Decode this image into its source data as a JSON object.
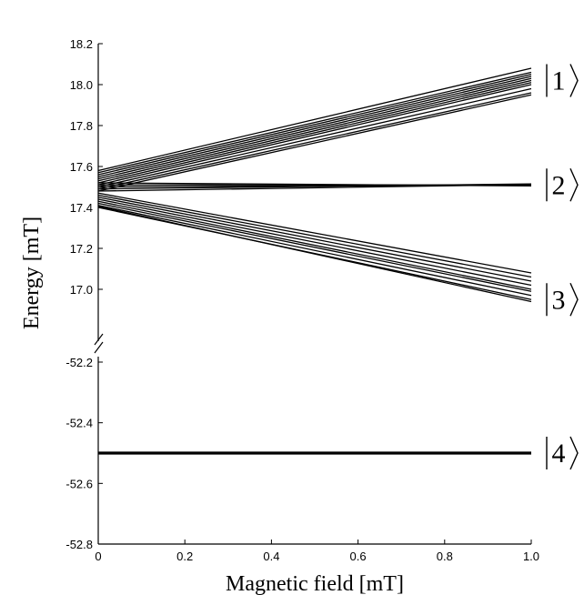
{
  "chart_data": {
    "type": "line",
    "xlabel": "Magnetic field [mT]",
    "ylabel": "Energy [mT]",
    "xlim": [
      0,
      1.0
    ],
    "x_ticks": [
      "0",
      "0.2",
      "0.4",
      "0.6",
      "0.8",
      "1.0"
    ],
    "broken_y_axis": true,
    "upper_panel": {
      "ylim": [
        16.87,
        18.2
      ],
      "y_ticks": [
        "18.2",
        "18.0",
        "17.8",
        "17.6",
        "17.4",
        "17.2",
        "17.0"
      ]
    },
    "lower_panel": {
      "ylim": [
        -52.8,
        -52.1
      ],
      "y_ticks": [
        "-52.2",
        "-52.4",
        "-52.6",
        "-52.8"
      ]
    },
    "state_labels": [
      {
        "ket": "1",
        "level": 18.02,
        "panel": "upper"
      },
      {
        "ket": "2",
        "level": 17.51,
        "panel": "upper"
      },
      {
        "ket": "3",
        "level": 16.95,
        "panel": "upper"
      },
      {
        "ket": "4",
        "level": -52.5,
        "panel": "lower"
      }
    ],
    "series_groups": [
      {
        "state": "1",
        "x": [
          0,
          1.0
        ],
        "lines": [
          [
            17.58,
            18.08
          ],
          [
            17.57,
            18.06
          ],
          [
            17.56,
            18.05
          ],
          [
            17.55,
            18.04
          ],
          [
            17.54,
            18.03
          ],
          [
            17.53,
            18.02
          ],
          [
            17.52,
            18.01
          ],
          [
            17.51,
            18.0
          ],
          [
            17.5,
            17.98
          ],
          [
            17.49,
            17.96
          ],
          [
            17.48,
            17.95
          ]
        ]
      },
      {
        "state": "2",
        "x": [
          0,
          1.0
        ],
        "lines": [
          [
            17.52,
            17.505
          ],
          [
            17.51,
            17.51
          ],
          [
            17.5,
            17.51
          ],
          [
            17.49,
            17.515
          ],
          [
            17.48,
            17.512
          ]
        ]
      },
      {
        "state": "3",
        "x": [
          0,
          1.0
        ],
        "lines": [
          [
            17.47,
            17.08
          ],
          [
            17.46,
            17.06
          ],
          [
            17.45,
            17.04
          ],
          [
            17.44,
            17.02
          ],
          [
            17.43,
            17.0
          ],
          [
            17.42,
            16.99
          ],
          [
            17.41,
            16.97
          ],
          [
            17.4,
            16.95
          ],
          [
            17.405,
            16.94
          ]
        ]
      },
      {
        "state": "4",
        "x": [
          0,
          1.0
        ],
        "lines": [
          [
            -52.497,
            -52.497
          ],
          [
            -52.5,
            -52.5
          ],
          [
            -52.503,
            -52.503
          ]
        ]
      }
    ]
  }
}
